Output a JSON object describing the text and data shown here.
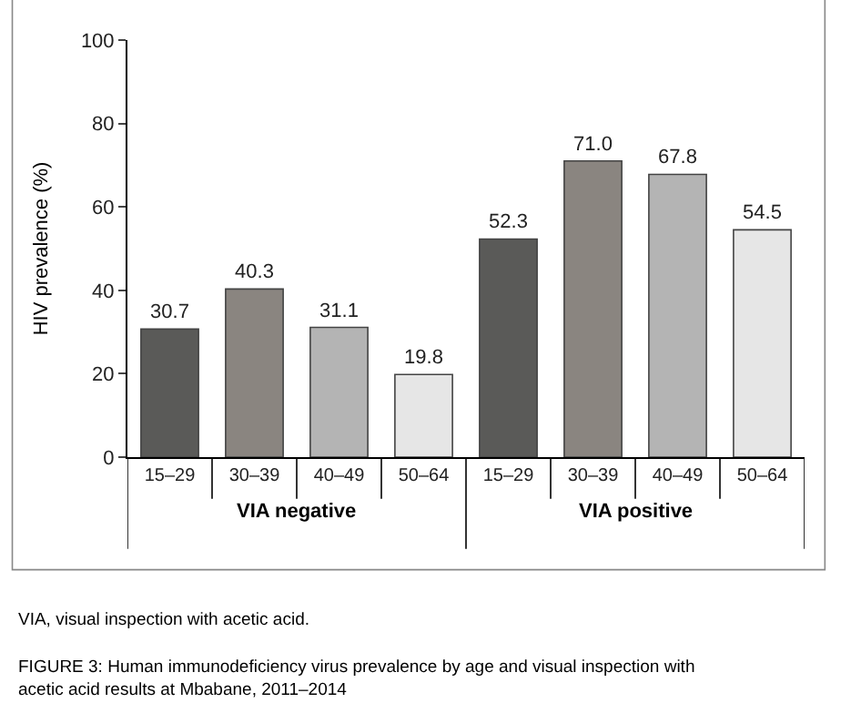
{
  "chart_data": {
    "type": "bar",
    "ylabel": "HIV prevalence (%)",
    "categories": [
      "15–29",
      "30–39",
      "40–49",
      "50–64",
      "15–29",
      "30–39",
      "40–49",
      "50–64"
    ],
    "values": [
      30.7,
      40.3,
      31.1,
      19.8,
      52.3,
      71.0,
      67.8,
      54.5
    ],
    "colors": [
      "#5a5a58",
      "#8a8580",
      "#b4b4b4",
      "#e6e6e6",
      "#5a5a58",
      "#8a8580",
      "#b4b4b4",
      "#e6e6e6"
    ],
    "value_labels": [
      "30.7",
      "40.3",
      "31.1",
      "19.8",
      "52.3",
      "71.0",
      "67.8",
      "54.5"
    ],
    "ylim": [
      0,
      100
    ],
    "yticks": [
      0,
      20,
      40,
      60,
      80,
      100
    ],
    "legend": false,
    "annotations": [
      "VIA negative",
      "VIA positive",
      "VIA, visual inspection with acetic acid.",
      "FIGURE 3: Human immunodeficiency virus prevalence by age and visual inspection with acetic acid results at Mbabane, 2011–2014"
    ]
  }
}
